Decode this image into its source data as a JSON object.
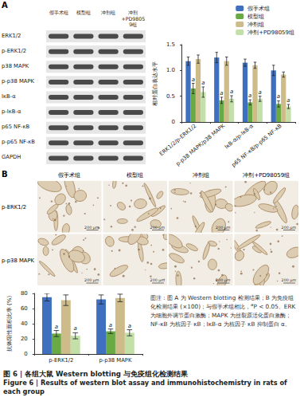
{
  "figure": {
    "panel_a": {
      "label": "A",
      "groups": [
        "假手术组",
        "模型组",
        "冲剂组",
        "冲剂+PD98059组"
      ],
      "proteins": [
        "ERK1/2",
        "p-ERK1/2",
        "p38 MAPK",
        "p-p38 MAPK",
        "IκB-α",
        "p-IκB-α",
        "p65 NF-κB",
        "p-p65 NF-κB",
        "GAPDH"
      ]
    },
    "panel_b": {
      "label": "B",
      "groups": [
        "假手术组",
        "模型组",
        "冲剂组",
        "冲剂+PD98059组"
      ],
      "rows": [
        "p-ERK1/2",
        "p-p38 MAPK"
      ],
      "scale_bar": "200 μm"
    },
    "caption": [
      "图注：图 A 为 Western blotting 检测结果；B 为免疫组化检测结果 (×100)；与假手术组相比，",
      {
        "sup": "a"
      },
      "P < 0.05。ERK 为细胞外调节蛋白激酶；MAPK 为丝裂原活化蛋白激酶；NF-κB 为核因子 κB；IκB-α 为核因子 κB 抑制蛋白 α。"
    ],
    "title_cn": "图 6 | 各组大鼠 Western blotting 与免疫组化检测结果",
    "title_en": "Figure 6 | Results of western blot assay and immunohistochemistry in rats of each group"
  },
  "chart_data": [
    {
      "type": "bar",
      "y_label": "相对蛋白表达水平",
      "categories": [
        "ERK1/2/p-ERK1/2",
        "p-p38 MAPK/p38 MAPK",
        "IκB-α/p-IκB-α",
        "p65 NF-κB/p-p65 NF-κB"
      ],
      "ylim": [
        0,
        1.5
      ],
      "yticks": [
        0,
        0.5,
        {
          "value": 1,
          "label": "1.0"
        },
        1.5
      ],
      "grid": false,
      "legend": "top-right",
      "series": [
        {
          "name": "假手术组",
          "color": "#3f6fbf",
          "values": [
            1.18,
            1.25,
            1.15,
            1.0
          ],
          "errors": [
            0.08,
            0.1,
            0.07,
            0.1
          ]
        },
        {
          "name": "模型组",
          "color": "#6aaa45",
          "values": [
            0.65,
            0.42,
            0.38,
            0.35
          ],
          "errors": [
            0.1,
            0.06,
            0.05,
            0.06
          ]
        },
        {
          "name": "冲剂组",
          "color": "#cdbb8a",
          "values": [
            1.22,
            1.18,
            1.1,
            0.92
          ],
          "errors": [
            0.08,
            0.08,
            0.06,
            0.05
          ]
        },
        {
          "name": "冲剂+PD98059组",
          "color": "#c2e0a8",
          "values": [
            0.58,
            0.45,
            0.45,
            0.3
          ],
          "errors": [
            0.1,
            0.06,
            0.05,
            0.04
          ]
        }
      ],
      "annotations": [
        {
          "text": "a",
          "series": "模型组",
          "category": "ERK1/2/p-ERK1/2"
        },
        {
          "text": "a",
          "series": "模型组",
          "category": "p-p38 MAPK/p38 MAPK"
        },
        {
          "text": "a",
          "series": "模型组",
          "category": "IκB-α/p-IκB-α"
        },
        {
          "text": "a",
          "series": "模型组",
          "category": "p65 NF-κB/p-p65 NF-κB"
        },
        {
          "text": "a",
          "series": "冲剂+PD98059组",
          "category": "ERK1/2/p-ERK1/2"
        },
        {
          "text": "a",
          "series": "冲剂+PD98059组",
          "category": "p-p38 MAPK/p38 MAPK"
        },
        {
          "text": "a",
          "series": "冲剂+PD98059组",
          "category": "IκB-α/p-IκB-α"
        },
        {
          "text": "a",
          "series": "冲剂+PD98059组",
          "category": "p65 NF-κB/p-p65 NF-κB"
        }
      ]
    },
    {
      "type": "bar",
      "y_label": "抗体阳性面积比率 (%)",
      "categories": [
        "p-ERK1/2",
        "p-p38 MAPK"
      ],
      "ylim": [
        0,
        80
      ],
      "yticks": [
        0,
        20,
        40,
        60,
        80
      ],
      "grid": false,
      "series": [
        {
          "name": "假手术组",
          "color": "#3f6fbf",
          "values": [
            75,
            72
          ],
          "errors": [
            5,
            6
          ]
        },
        {
          "name": "模型组",
          "color": "#6aaa45",
          "values": [
            27,
            30
          ],
          "errors": [
            4,
            3
          ]
        },
        {
          "name": "冲剂组",
          "color": "#cdbb8a",
          "values": [
            71,
            74
          ],
          "errors": [
            7,
            5
          ]
        },
        {
          "name": "冲剂+PD98059组",
          "color": "#c2e0a8",
          "values": [
            24,
            28
          ],
          "errors": [
            4,
            4
          ]
        }
      ],
      "annotations": [
        {
          "text": "a",
          "series": "模型组",
          "category": "p-ERK1/2"
        },
        {
          "text": "a",
          "series": "模型组",
          "category": "p-p38 MAPK"
        },
        {
          "text": "a",
          "series": "冲剂+PD98059组",
          "category": "p-ERK1/2"
        },
        {
          "text": "a",
          "series": "冲剂+PD98059组",
          "category": "p-p38 MAPK"
        }
      ]
    }
  ]
}
